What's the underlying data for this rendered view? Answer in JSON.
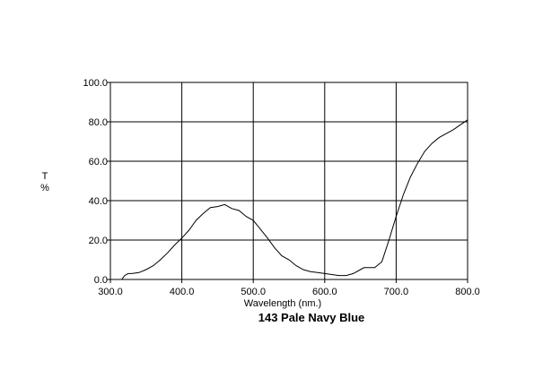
{
  "chart_data": {
    "type": "line",
    "title": "143 Pale Navy Blue",
    "xlabel": "Wavelength (nm.)",
    "ylabel": "T\n%",
    "ylabel_lines": [
      "T",
      "%"
    ],
    "xlim": [
      300,
      800
    ],
    "ylim": [
      0,
      100
    ],
    "x_ticks": [
      300,
      400,
      500,
      600,
      700,
      800
    ],
    "x_tick_labels": [
      "300.0",
      "400.0",
      "500.0",
      "600.0",
      "700.0",
      "800.0"
    ],
    "y_ticks": [
      0,
      20,
      40,
      60,
      80,
      100
    ],
    "y_tick_labels": [
      "0.0",
      "20.0",
      "40.0",
      "60.0",
      "80.0",
      "100.0"
    ],
    "grid": true,
    "series": [
      {
        "color": "#000000",
        "x": [
          316,
          318,
          320,
          325,
          330,
          340,
          350,
          360,
          370,
          380,
          390,
          400,
          410,
          420,
          430,
          440,
          450,
          455,
          460,
          465,
          470,
          480,
          490,
          500,
          510,
          520,
          530,
          540,
          550,
          560,
          570,
          580,
          590,
          600,
          610,
          620,
          630,
          640,
          650,
          655,
          660,
          665,
          670,
          680,
          690,
          700,
          710,
          720,
          730,
          740,
          750,
          760,
          770,
          780,
          790,
          800
        ],
        "y": [
          0,
          1,
          2,
          3,
          3,
          3.5,
          5,
          7,
          10,
          13.5,
          17.5,
          21,
          25,
          30,
          33.5,
          36.5,
          37,
          37.5,
          38,
          37,
          36,
          35,
          32,
          30,
          25.5,
          21,
          16,
          12,
          10,
          7,
          5,
          4,
          3.5,
          3,
          2.5,
          2,
          2,
          3,
          5,
          6,
          6,
          6,
          6,
          9,
          20,
          32,
          43,
          52,
          59,
          65,
          69,
          72,
          74,
          76,
          78.5,
          81
        ]
      }
    ]
  }
}
